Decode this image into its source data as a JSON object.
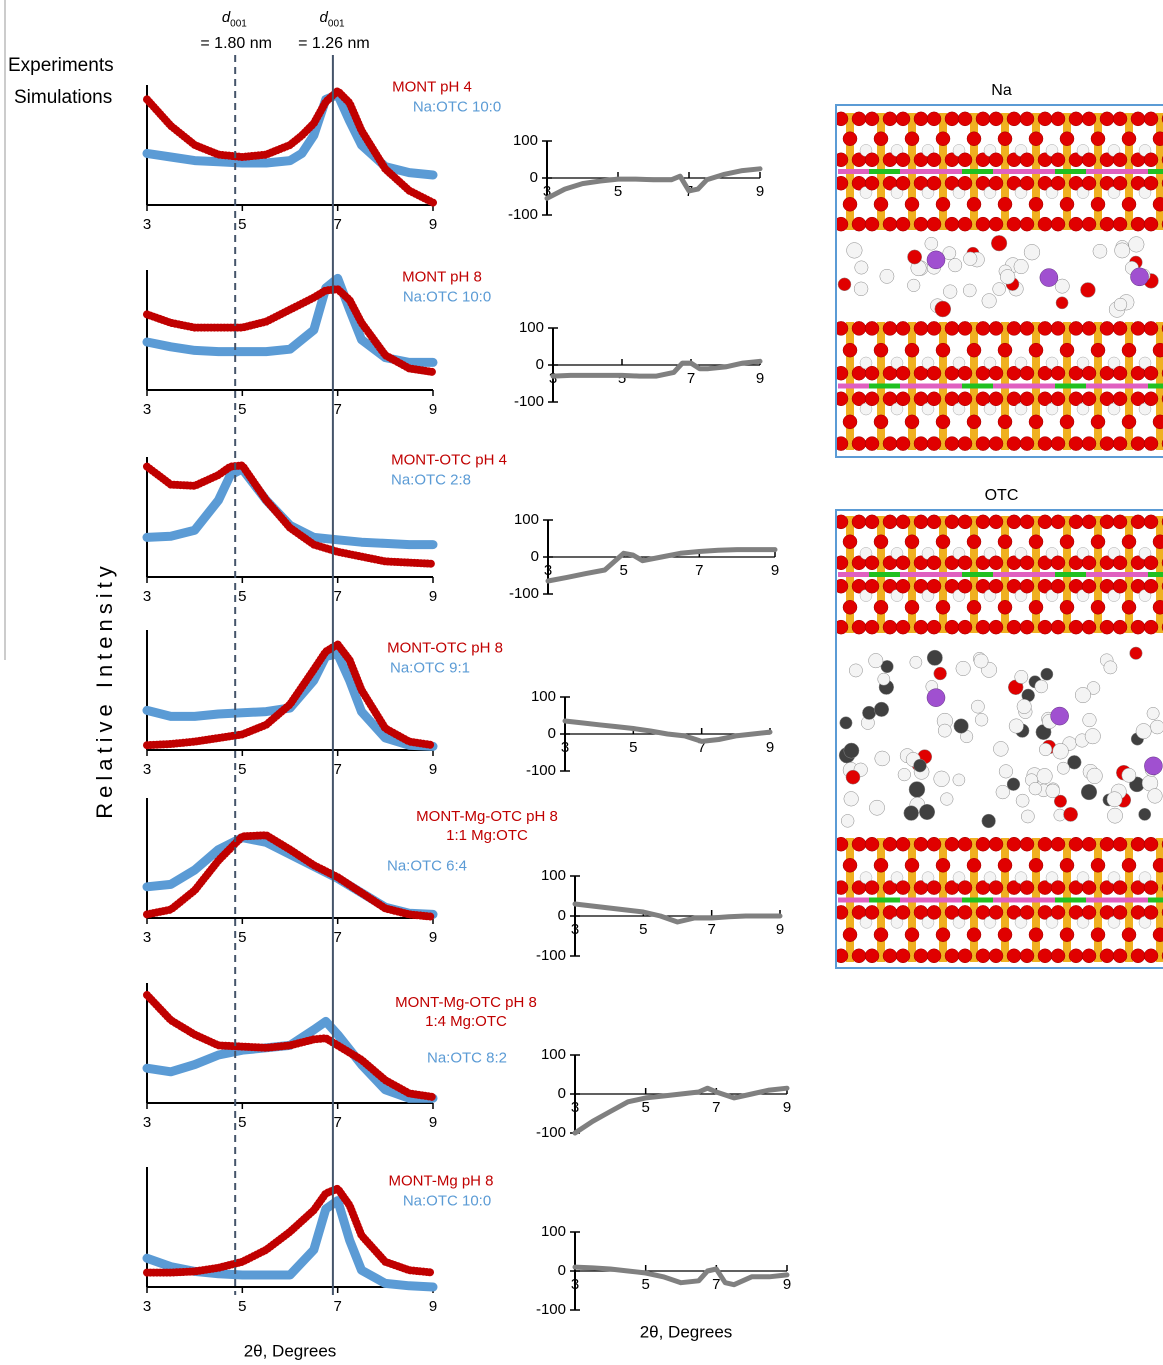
{
  "figure": {
    "legend": [
      {
        "name": "Experiments",
        "color": "#c00000"
      },
      {
        "name": "Simulations",
        "color": "#5b9bd5"
      }
    ],
    "y_label": "Relative Intensity",
    "reference_lines": [
      {
        "symbol": "d",
        "subscript": "001",
        "label": "= 1.80 nm",
        "x": 4.85,
        "style": "dashed",
        "color": "#44546a"
      },
      {
        "symbol": "d",
        "subscript": "001",
        "label": "= 1.26 nm",
        "x": 6.9,
        "style": "solid",
        "color": "#44546a"
      }
    ],
    "structures": [
      {
        "title": "Na",
        "guest": "Na"
      },
      {
        "title": "OTC",
        "guest": "OTC"
      }
    ]
  },
  "chart_data": [
    {
      "type": "line",
      "x": [
        3,
        3.5,
        4,
        4.5,
        5,
        5.5,
        6,
        6.25,
        6.5,
        6.75,
        7,
        7.25,
        7.5,
        8,
        8.5,
        9
      ],
      "xlim": [
        3,
        9
      ],
      "xticks": [
        3,
        5,
        7,
        9
      ],
      "ylim": [
        0,
        1
      ],
      "series": [
        {
          "name": "MONT pH 4",
          "color": "#c00000",
          "style": "dots",
          "values": [
            0.88,
            0.66,
            0.5,
            0.42,
            0.4,
            0.42,
            0.5,
            0.58,
            0.68,
            0.86,
            0.95,
            0.85,
            0.62,
            0.3,
            0.12,
            0.02
          ]
        },
        {
          "name": "Na:OTC 10:0",
          "color": "#5b9bd5",
          "style": "solid",
          "values": [
            0.43,
            0.4,
            0.37,
            0.36,
            0.35,
            0.35,
            0.37,
            0.43,
            0.58,
            0.88,
            0.92,
            0.7,
            0.5,
            0.32,
            0.27,
            0.25
          ]
        }
      ]
    },
    {
      "type": "line",
      "x": [
        3,
        3.5,
        4,
        4.5,
        5,
        5.5,
        6,
        6.5,
        6.75,
        7,
        7.25,
        7.5,
        8,
        8.5,
        9
      ],
      "xlim": [
        3,
        9
      ],
      "xticks": [
        3,
        5,
        7,
        9
      ],
      "ylim": [
        0,
        1
      ],
      "series": [
        {
          "name": "MONT pH 8",
          "color": "#c00000",
          "style": "dots",
          "values": [
            0.63,
            0.56,
            0.52,
            0.52,
            0.52,
            0.57,
            0.67,
            0.77,
            0.83,
            0.84,
            0.75,
            0.56,
            0.29,
            0.18,
            0.15
          ]
        },
        {
          "name": "Na:OTC 10:0",
          "color": "#5b9bd5",
          "style": "solid",
          "values": [
            0.4,
            0.36,
            0.33,
            0.32,
            0.32,
            0.32,
            0.34,
            0.5,
            0.85,
            0.93,
            0.67,
            0.42,
            0.27,
            0.23,
            0.23
          ]
        }
      ]
    },
    {
      "type": "line",
      "x": [
        3,
        3.5,
        4,
        4.5,
        4.75,
        5,
        5.5,
        6,
        6.5,
        7,
        7.5,
        8,
        8.5,
        9
      ],
      "xlim": [
        3,
        9
      ],
      "xticks": [
        3,
        5,
        7,
        9
      ],
      "ylim": [
        0,
        1
      ],
      "series": [
        {
          "name": "MONT-OTC pH 4",
          "color": "#c00000",
          "style": "dots",
          "values": [
            0.92,
            0.77,
            0.76,
            0.85,
            0.92,
            0.93,
            0.64,
            0.41,
            0.27,
            0.21,
            0.17,
            0.13,
            0.12,
            0.11
          ]
        },
        {
          "name": "Na:OTC 2:8",
          "color": "#5b9bd5",
          "style": "solid",
          "values": [
            0.33,
            0.34,
            0.39,
            0.64,
            0.85,
            0.9,
            0.64,
            0.43,
            0.33,
            0.31,
            0.29,
            0.28,
            0.27,
            0.27
          ]
        }
      ]
    },
    {
      "type": "line",
      "x": [
        3,
        3.5,
        4,
        4.5,
        5,
        5.5,
        6,
        6.5,
        6.75,
        7,
        7.25,
        7.5,
        8,
        8.5,
        9
      ],
      "xlim": [
        3,
        9
      ],
      "xticks": [
        3,
        5,
        7,
        9
      ],
      "ylim": [
        0,
        1
      ],
      "series": [
        {
          "name": "MONT-OTC pH 8",
          "color": "#c00000",
          "style": "dots",
          "values": [
            0.04,
            0.05,
            0.07,
            0.1,
            0.13,
            0.21,
            0.38,
            0.67,
            0.82,
            0.88,
            0.75,
            0.5,
            0.18,
            0.07,
            0.04
          ]
        },
        {
          "name": "Na:OTC 9:1",
          "color": "#5b9bd5",
          "style": "solid",
          "values": [
            0.33,
            0.28,
            0.28,
            0.3,
            0.31,
            0.32,
            0.35,
            0.58,
            0.78,
            0.8,
            0.58,
            0.32,
            0.1,
            0.04,
            0.03
          ]
        }
      ]
    },
    {
      "type": "line",
      "x": [
        3,
        3.5,
        4,
        4.5,
        5,
        5.5,
        6,
        6.5,
        7,
        7.5,
        8,
        8.5,
        9
      ],
      "xlim": [
        3,
        9
      ],
      "xticks": [
        3,
        5,
        7,
        9
      ],
      "ylim": [
        0,
        1
      ],
      "series": [
        {
          "name": "MONT-Mg-OTC pH 8\n1:1 Mg:OTC",
          "color": "#c00000",
          "style": "dots",
          "values": [
            0.03,
            0.07,
            0.23,
            0.48,
            0.68,
            0.69,
            0.57,
            0.44,
            0.34,
            0.21,
            0.08,
            0.03,
            0.01
          ]
        },
        {
          "name": "Na:OTC 6:4",
          "color": "#5b9bd5",
          "style": "solid",
          "values": [
            0.26,
            0.28,
            0.4,
            0.57,
            0.67,
            0.63,
            0.53,
            0.43,
            0.33,
            0.21,
            0.09,
            0.04,
            0.03
          ]
        }
      ]
    },
    {
      "type": "line",
      "x": [
        3,
        3.5,
        4,
        4.5,
        5,
        5.5,
        6,
        6.5,
        6.75,
        7,
        7.5,
        8,
        8.5,
        9
      ],
      "xlim": [
        3,
        9
      ],
      "xticks": [
        3,
        5,
        7,
        9
      ],
      "ylim": [
        0,
        1
      ],
      "series": [
        {
          "name": "MONT-Mg-OTC pH 8\n1:4 Mg:OTC",
          "color": "#c00000",
          "style": "dots",
          "values": [
            0.9,
            0.69,
            0.57,
            0.48,
            0.47,
            0.46,
            0.48,
            0.53,
            0.54,
            0.48,
            0.36,
            0.19,
            0.08,
            0.05
          ]
        },
        {
          "name": "Na:OTC 8:2",
          "color": "#5b9bd5",
          "style": "solid",
          "values": [
            0.29,
            0.26,
            0.32,
            0.4,
            0.44,
            0.46,
            0.48,
            0.61,
            0.68,
            0.57,
            0.32,
            0.11,
            0.04,
            0.04
          ]
        }
      ]
    },
    {
      "type": "line",
      "x": [
        3,
        3.5,
        4,
        4.5,
        5,
        5.5,
        6,
        6.5,
        6.75,
        7,
        7.25,
        7.5,
        8,
        8.5,
        9
      ],
      "xlim": [
        3,
        9
      ],
      "xticks": [
        3,
        5,
        7,
        9
      ],
      "ylim": [
        0,
        1
      ],
      "xlabel": "2θ, Degrees",
      "series": [
        {
          "name": "MONT-Mg pH 8",
          "color": "#c00000",
          "style": "dots",
          "values": [
            0.12,
            0.12,
            0.13,
            0.16,
            0.21,
            0.31,
            0.46,
            0.64,
            0.78,
            0.82,
            0.68,
            0.43,
            0.21,
            0.14,
            0.12
          ]
        },
        {
          "name": "Na:OTC 10:0",
          "color": "#5b9bd5",
          "style": "solid",
          "values": [
            0.24,
            0.17,
            0.13,
            0.11,
            0.1,
            0.1,
            0.1,
            0.31,
            0.65,
            0.72,
            0.39,
            0.14,
            0.03,
            0.01,
            0
          ]
        }
      ]
    },
    {
      "type": "line",
      "x": [
        3,
        3.5,
        4,
        4.5,
        5,
        5.5,
        6,
        6.5,
        6.75,
        7,
        7.25,
        7.5,
        8,
        8.5,
        9
      ],
      "values": [
        -55,
        -30,
        -15,
        -8,
        -3,
        -3,
        -5,
        -5,
        5,
        -35,
        -30,
        -5,
        10,
        20,
        25
      ],
      "color": "#808080",
      "xlim": [
        3,
        9
      ],
      "xticks": [
        3,
        5,
        7,
        9
      ],
      "ylim": [
        -100,
        100
      ],
      "yticks": [
        -100,
        0,
        100
      ]
    },
    {
      "type": "line",
      "x": [
        3,
        3.5,
        4,
        4.5,
        5,
        5.5,
        6,
        6.5,
        6.75,
        7,
        7.25,
        7.5,
        8,
        8.5,
        9
      ],
      "values": [
        -30,
        -28,
        -28,
        -28,
        -28,
        -30,
        -30,
        -20,
        5,
        5,
        -10,
        -10,
        -5,
        5,
        10
      ],
      "color": "#808080",
      "xlim": [
        3,
        9
      ],
      "xticks": [
        3,
        5,
        7,
        9
      ],
      "ylim": [
        -100,
        100
      ],
      "yticks": [
        -100,
        0,
        100
      ]
    },
    {
      "type": "line",
      "x": [
        3,
        3.5,
        4,
        4.5,
        5,
        5.25,
        5.5,
        6,
        6.5,
        7,
        7.5,
        8,
        8.5,
        9
      ],
      "values": [
        -65,
        -55,
        -45,
        -35,
        10,
        5,
        -10,
        0,
        10,
        15,
        18,
        20,
        20,
        20
      ],
      "color": "#808080",
      "xlim": [
        3,
        9
      ],
      "xticks": [
        3,
        5,
        7,
        9
      ],
      "ylim": [
        -100,
        100
      ],
      "yticks": [
        -100,
        0,
        100
      ]
    },
    {
      "type": "line",
      "x": [
        3,
        3.5,
        4,
        4.5,
        5,
        5.5,
        6,
        6.5,
        7,
        7.5,
        8,
        8.5,
        9
      ],
      "values": [
        35,
        30,
        25,
        20,
        15,
        8,
        0,
        -5,
        -20,
        -15,
        -5,
        0,
        5
      ],
      "color": "#808080",
      "xlim": [
        3,
        9
      ],
      "xticks": [
        3,
        5,
        7,
        9
      ],
      "ylim": [
        -100,
        100
      ],
      "yticks": [
        -100,
        0,
        100
      ]
    },
    {
      "type": "line",
      "x": [
        3,
        3.5,
        4,
        4.5,
        5,
        5.5,
        6,
        6.5,
        7,
        7.5,
        8,
        8.5,
        9
      ],
      "values": [
        30,
        25,
        20,
        15,
        10,
        0,
        -15,
        -5,
        -5,
        -2,
        0,
        0,
        0
      ],
      "color": "#808080",
      "xlim": [
        3,
        9
      ],
      "xticks": [
        3,
        5,
        7,
        9
      ],
      "ylim": [
        -100,
        100
      ],
      "yticks": [
        -100,
        0,
        100
      ]
    },
    {
      "type": "line",
      "x": [
        3,
        3.5,
        4,
        4.5,
        5,
        5.5,
        6,
        6.5,
        6.75,
        7,
        7.5,
        8,
        8.5,
        9
      ],
      "values": [
        -100,
        -70,
        -45,
        -20,
        -10,
        -5,
        0,
        5,
        15,
        5,
        -10,
        0,
        10,
        15
      ],
      "color": "#808080",
      "xlim": [
        3,
        9
      ],
      "xticks": [
        3,
        5,
        7,
        9
      ],
      "ylim": [
        -100,
        100
      ],
      "yticks": [
        -100,
        0,
        100
      ]
    },
    {
      "type": "line",
      "x": [
        3,
        3.5,
        4,
        4.5,
        5,
        5.5,
        6,
        6.5,
        6.75,
        7,
        7.25,
        7.5,
        8,
        8.5,
        9
      ],
      "values": [
        10,
        8,
        5,
        0,
        -5,
        -15,
        -30,
        -25,
        0,
        5,
        -30,
        -35,
        -15,
        -15,
        -10
      ],
      "color": "#808080",
      "xlim": [
        3,
        9
      ],
      "xticks": [
        3,
        5,
        7,
        9
      ],
      "ylim": [
        -100,
        100
      ],
      "yticks": [
        -100,
        0,
        100
      ],
      "xlabel": "2θ, Degrees"
    }
  ]
}
